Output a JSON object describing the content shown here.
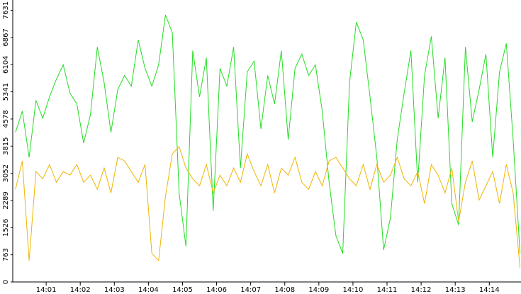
{
  "chart_data": {
    "type": "line",
    "x": [
      0.1,
      0.3,
      0.5,
      0.7,
      0.9,
      1.1,
      1.3,
      1.5,
      1.7,
      1.9,
      2.1,
      2.3,
      2.5,
      2.7,
      2.9,
      3.1,
      3.3,
      3.5,
      3.7,
      3.9,
      4.1,
      4.3,
      4.5,
      4.7,
      4.9,
      5.1,
      5.3,
      5.5,
      5.7,
      5.9,
      6.1,
      6.3,
      6.5,
      6.7,
      6.9,
      7.1,
      7.3,
      7.5,
      7.7,
      7.9,
      8.1,
      8.3,
      8.5,
      8.7,
      8.9,
      9.1,
      9.3,
      9.5,
      9.7,
      9.9,
      10.1,
      10.3,
      10.5,
      10.7,
      10.9,
      11.1,
      11.3,
      11.5,
      11.7,
      11.9,
      12.1,
      12.3,
      12.5,
      12.7,
      12.9,
      13.1,
      13.3,
      13.5,
      13.7,
      13.9,
      14.1,
      14.3,
      14.5,
      14.7,
      14.9
    ],
    "series": [
      {
        "color": "#22dd22",
        "values": [
          4200,
          4800,
          3500,
          5100,
          4600,
          5200,
          5700,
          6100,
          5300,
          5000,
          3900,
          4700,
          6600,
          5600,
          4200,
          5400,
          5800,
          5500,
          6800,
          6000,
          5500,
          6100,
          7500,
          7000,
          2500,
          1000,
          6500,
          5200,
          6300,
          2000,
          6000,
          5500,
          6600,
          3200,
          5900,
          6200,
          4300,
          5800,
          5000,
          6500,
          4000,
          6000,
          6400,
          5800,
          6100,
          4800,
          2800,
          1300,
          800,
          5600,
          7300,
          6800,
          5200,
          3500,
          900,
          1800,
          4000,
          5300,
          6500,
          2800,
          5800,
          6900,
          4600,
          6300,
          2200,
          1600,
          6600,
          4500,
          5400,
          6400,
          3500,
          5900,
          6700,
          4000,
          800
        ]
      },
      {
        "color": "#f0b400",
        "values": [
          2600,
          3400,
          600,
          3100,
          2900,
          3300,
          2800,
          3100,
          3000,
          3300,
          2800,
          3000,
          2600,
          3200,
          2500,
          3500,
          3400,
          3100,
          2800,
          3300,
          800,
          600,
          2400,
          3600,
          3800,
          3200,
          2900,
          2700,
          3300,
          2500,
          3000,
          2700,
          3200,
          2800,
          3600,
          3100,
          2700,
          3300,
          2500,
          3200,
          3000,
          3500,
          2800,
          2600,
          3100,
          2700,
          3400,
          3500,
          3200,
          2900,
          2700,
          3300,
          2600,
          3300,
          2800,
          3000,
          3500,
          2900,
          2700,
          3100,
          2200,
          3300,
          3000,
          2500,
          3200,
          1700,
          2800,
          3400,
          2300,
          2700,
          3100,
          2200,
          3300,
          2500,
          400
        ]
      }
    ],
    "xlim": [
      0.02,
      14.93
    ],
    "xticks": [
      {
        "value": 1,
        "label": "14:01"
      },
      {
        "value": 2,
        "label": "14:02"
      },
      {
        "value": 3,
        "label": "14:03"
      },
      {
        "value": 4,
        "label": "14:04"
      },
      {
        "value": 5,
        "label": "14:05"
      },
      {
        "value": 6,
        "label": "14:06"
      },
      {
        "value": 7,
        "label": "14:07"
      },
      {
        "value": 8,
        "label": "14:08"
      },
      {
        "value": 9,
        "label": "14:09"
      },
      {
        "value": 10,
        "label": "14:10"
      },
      {
        "value": 11,
        "label": "14:11"
      },
      {
        "value": 12,
        "label": "14:12"
      },
      {
        "value": 13,
        "label": "14:13"
      },
      {
        "value": 14,
        "label": "14:14"
      }
    ],
    "ylim": [
      0,
      7920
    ],
    "yticks": [
      0,
      763,
      1526,
      2289,
      3052,
      3815,
      4578,
      5341,
      6104,
      6867,
      7631
    ]
  }
}
